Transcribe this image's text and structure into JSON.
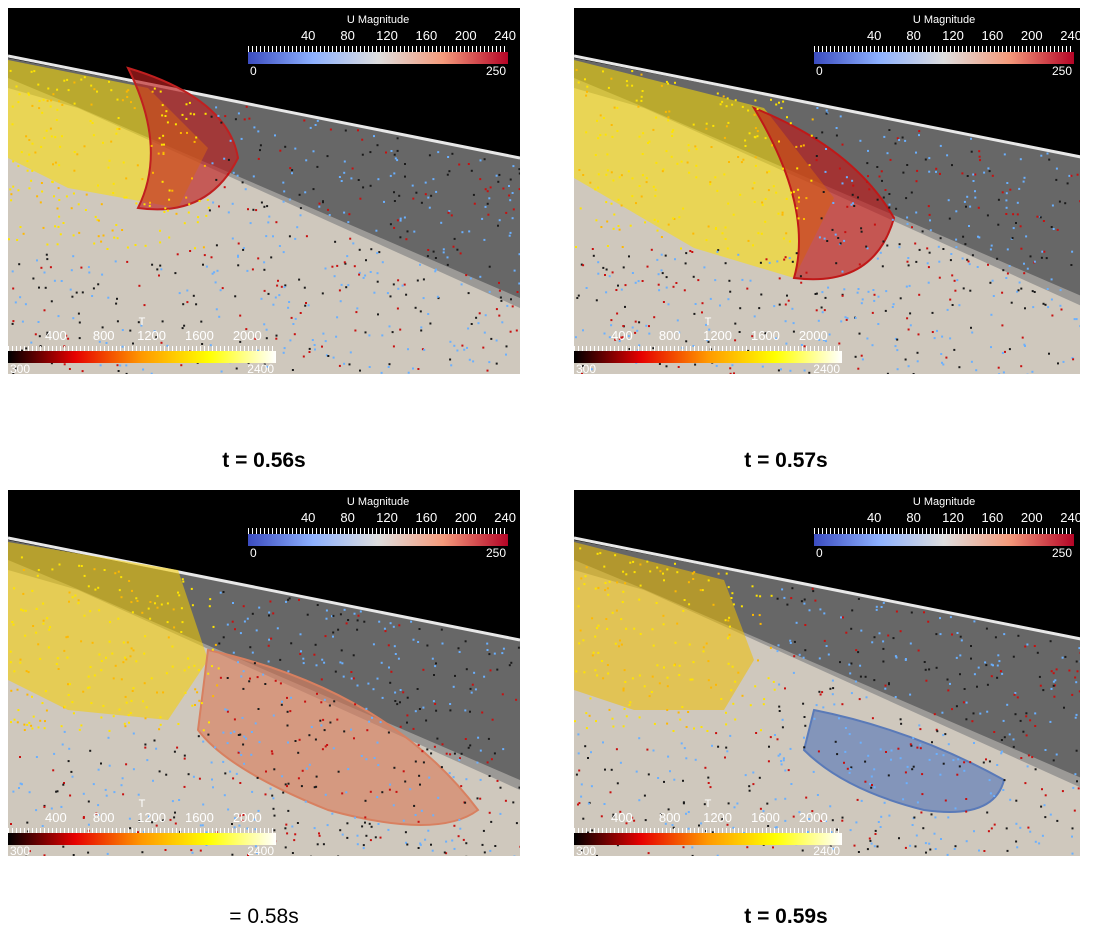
{
  "panels": [
    {
      "caption": "t = 0.56s",
      "bold": true,
      "stage": 0
    },
    {
      "caption": "t = 0.57s",
      "bold": true,
      "stage": 1
    },
    {
      "caption": "= 0.58s",
      "bold": false,
      "stage": 2
    },
    {
      "caption": "t = 0.59s",
      "bold": true,
      "stage": 3
    }
  ],
  "colorbar_velocity": {
    "title": "U Magnitude",
    "tick_labels": [
      "40",
      "80",
      "120",
      "160",
      "200",
      "240"
    ],
    "min_label": "0",
    "max_label": "250",
    "colors": [
      "#3b4cc0",
      "#8db0fe",
      "#dddddd",
      "#f49a7b",
      "#b40426"
    ]
  },
  "colorbar_temperature": {
    "title": "T",
    "tick_labels": [
      "400",
      "800",
      "1200",
      "1600",
      "2000"
    ],
    "min_label": "300",
    "max_label": "2400",
    "colors": [
      "#000000",
      "#e60000",
      "#ff9900",
      "#ffff00",
      "#ffffff"
    ]
  }
}
